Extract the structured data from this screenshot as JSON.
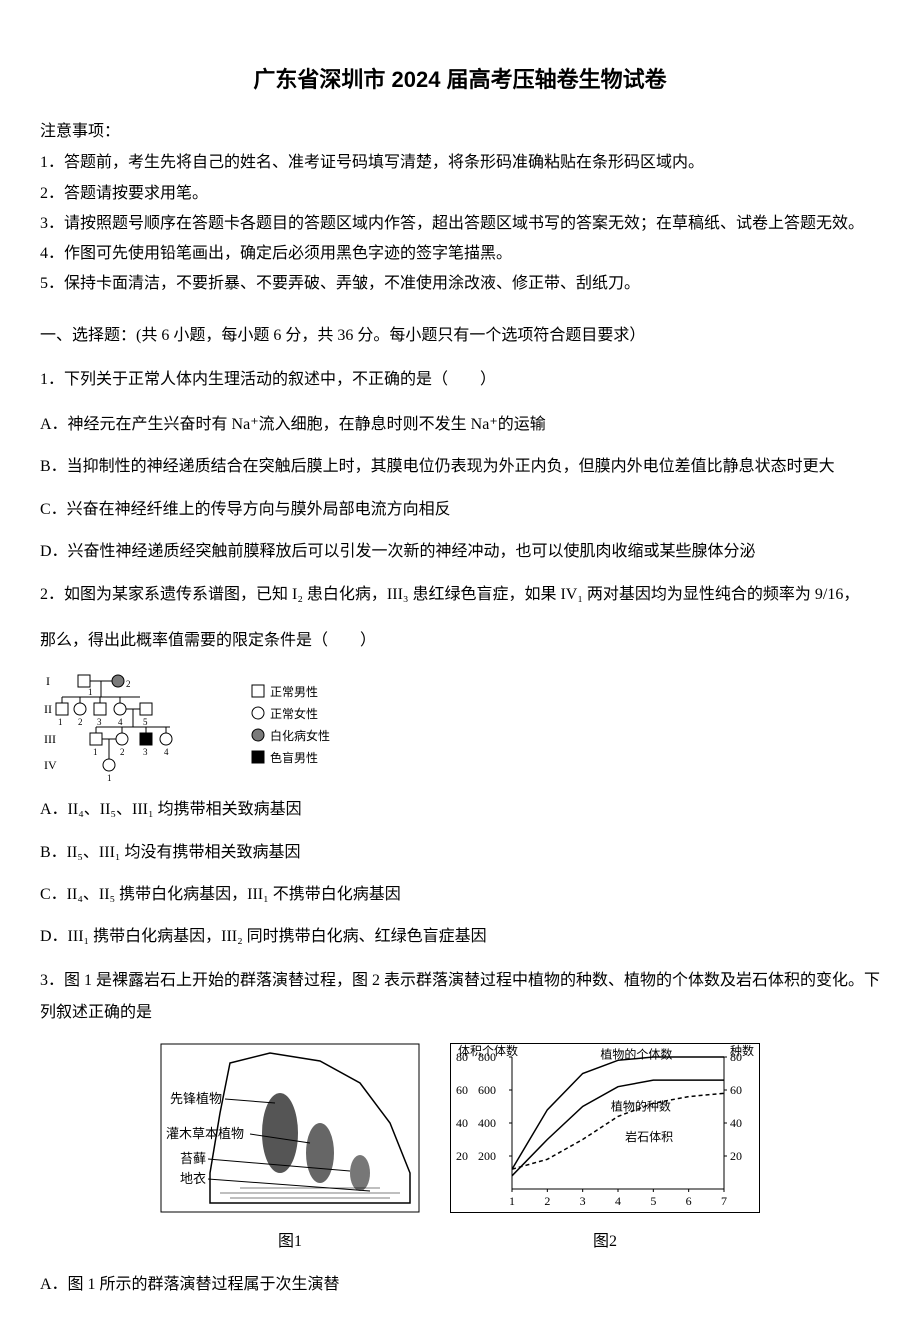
{
  "title": "广东省深圳市 2024 届高考压轴卷生物试卷",
  "instructions": {
    "header": "注意事项：",
    "items": [
      "1．答题前，考生先将自己的姓名、准考证号码填写清楚，将条形码准确粘贴在条形码区域内。",
      "2．答题请按要求用笔。",
      "3．请按照题号顺序在答题卡各题目的答题区域内作答，超出答题区域书写的答案无效；在草稿纸、试卷上答题无效。",
      "4．作图可先使用铅笔画出，确定后必须用黑色字迹的签字笔描黑。",
      "5．保持卡面清洁，不要折暴、不要弄破、弄皱，不准使用涂改液、修正带、刮纸刀。"
    ]
  },
  "section_header": "一、选择题：(共 6 小题，每小题 6 分，共 36 分。每小题只有一个选项符合题目要求）",
  "q1": {
    "stem": "1．下列关于正常人体内生理活动的叙述中，不正确的是（　　）",
    "A": "A．神经元在产生兴奋时有 Na⁺流入细胞，在静息时则不发生 Na⁺的运输",
    "B": "B．当抑制性的神经递质结合在突触后膜上时，其膜电位仍表现为外正内负，但膜内外电位差值比静息状态时更大",
    "C": "C．兴奋在神经纤维上的传导方向与膜外局部电流方向相反",
    "D": "D．兴奋性神经递质经突触前膜释放后可以引发一次新的神经冲动，也可以使肌肉收缩或某些腺体分泌"
  },
  "q2": {
    "stem_before": "2．如图为某家系遗传系谱图，已知 I₂ 患白化病，III₃ 患红绿色盲症，如果 IV₁ 两对基因均为显性纯合的频率为 9/16，",
    "stem_after": "那么，得出此概率值需要的限定条件是（　　）",
    "A": "A．II₄、II₅、III₁ 均携带相关致病基因",
    "B": "B．II₅、III₁ 均没有携带相关致病基因",
    "C": "C．II₄、II₅ 携带白化病基因，III₁ 不携带白化病基因",
    "D": "D．III₁ 携带白化病基因，III₂ 同时携带白化病、红绿色盲症基因",
    "legend": {
      "normal_male": "正常男性",
      "normal_female": "正常女性",
      "albino_female": "白化病女性",
      "colorblind_male": "色盲男性"
    },
    "generations": [
      "I",
      "II",
      "III",
      "IV"
    ],
    "pedigree_style": {
      "square_stroke": "#000000",
      "circle_stroke": "#000000",
      "fill_hatched": "#7a7a7a",
      "fill_solid": "#000000",
      "line_width": 1
    }
  },
  "q3": {
    "stem": "3．图 1 是裸露岩石上开始的群落演替过程，图 2 表示群落演替过程中植物的种数、植物的个体数及岩石体积的变化。下列叙述正确的是",
    "A": "A．图 1 所示的群落演替过程属于次生演替",
    "fig1": {
      "caption": "图1",
      "labels": [
        "先锋植物",
        "灌木草本植物",
        "苔藓",
        "地衣"
      ]
    },
    "fig2": {
      "caption": "图2",
      "y_left_label": "体积",
      "y_mid_label": "个体数",
      "y_right_label": "种数",
      "x_ticks": [
        1,
        2,
        3,
        4,
        5,
        6,
        7
      ],
      "y_left_ticks": [
        20,
        40,
        60,
        80
      ],
      "y_mid_ticks": [
        200,
        400,
        600,
        800
      ],
      "y_right_ticks": [
        20,
        40,
        60,
        80
      ],
      "series": {
        "individuals": {
          "label": "植物的个体数",
          "data": [
            [
              1,
              120
            ],
            [
              2,
              480
            ],
            [
              3,
              700
            ],
            [
              4,
              780
            ],
            [
              5,
              800
            ],
            [
              6,
              800
            ],
            [
              7,
              800
            ]
          ],
          "color": "#000000",
          "style": "solid"
        },
        "species": {
          "label": "植物的种数",
          "data": [
            [
              1,
              8
            ],
            [
              2,
              30
            ],
            [
              3,
              50
            ],
            [
              4,
              62
            ],
            [
              5,
              66
            ],
            [
              6,
              66
            ],
            [
              7,
              66
            ]
          ],
          "color": "#000000",
          "style": "solid"
        },
        "rock_volume": {
          "label": "岩石体积",
          "data": [
            [
              1,
              12
            ],
            [
              2,
              18
            ],
            [
              3,
              30
            ],
            [
              4,
              44
            ],
            [
              5,
              52
            ],
            [
              6,
              56
            ],
            [
              7,
              58
            ]
          ],
          "color": "#000000",
          "style": "dashed"
        }
      },
      "background_color": "#ffffff",
      "axis_color": "#000000",
      "font_size": 12
    }
  }
}
